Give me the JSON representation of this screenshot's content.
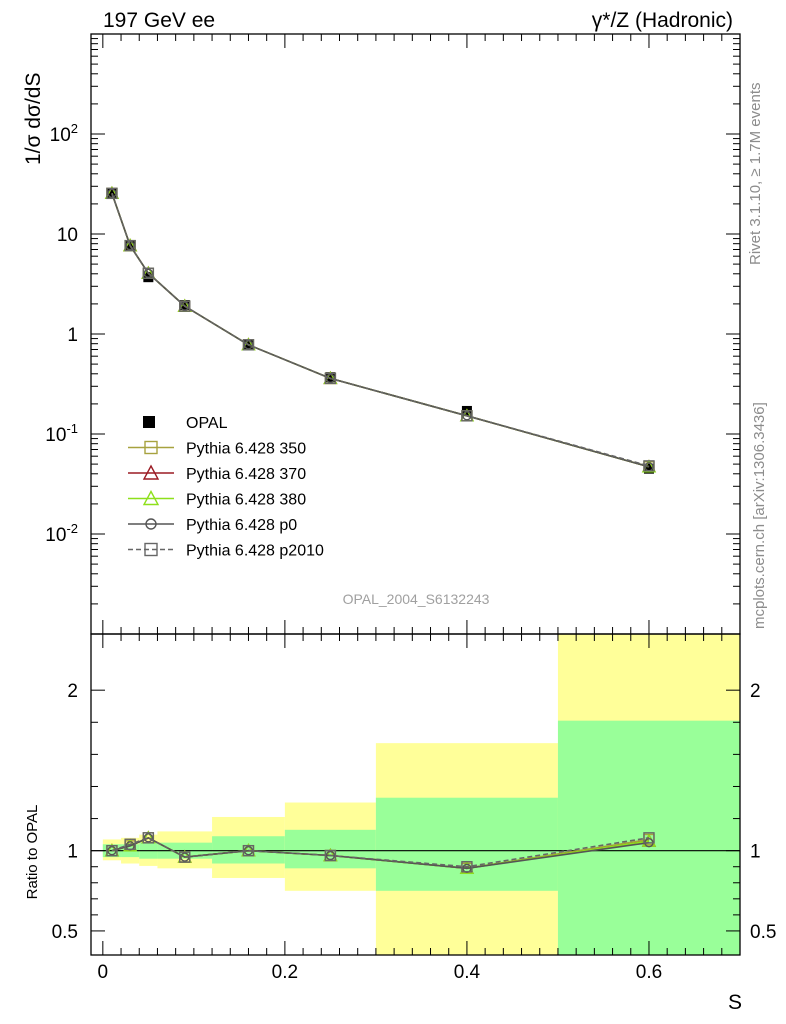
{
  "header": {
    "left": "197 GeV ee",
    "right": "γ*/Z (Hadronic)"
  },
  "side_labels": {
    "rivet": "Rivet 3.1.10, ≥ 1.7M events",
    "mcplots": "mcplots.cern.ch [arXiv:1306.3436]"
  },
  "watermark": "OPAL_2004_S6132243",
  "chart_data": [
    {
      "type": "line",
      "ylabel": "1/σ dσ/dS",
      "yscale": "log",
      "ylim": [
        0.001,
        1000
      ],
      "xlim": [
        -0.013,
        0.7
      ],
      "ytick_labels": [
        "10^-2",
        "10^-1",
        "1",
        "10",
        "10^2"
      ],
      "x": [
        0.01,
        0.03,
        0.05,
        0.09,
        0.16,
        0.25,
        0.4,
        0.6
      ],
      "data": {
        "name": "OPAL",
        "values": [
          25.5,
          7.6,
          3.7,
          1.95,
          0.78,
          0.37,
          0.17,
          0.045
        ]
      },
      "series": [
        {
          "name": "Pythia 6.428 350",
          "color": "#a7a23f",
          "marker": "open-square",
          "style": "solid",
          "values": [
            25.5,
            7.65,
            4.05,
            1.9,
            0.78,
            0.36,
            0.152,
            0.047
          ]
        },
        {
          "name": "Pythia 6.428 370",
          "color": "#9b1b24",
          "marker": "open-triangle",
          "style": "solid",
          "values": [
            25.5,
            7.65,
            4.05,
            1.9,
            0.78,
            0.36,
            0.152,
            0.047
          ]
        },
        {
          "name": "Pythia 6.428 380",
          "color": "#8ee01b",
          "marker": "open-triangle",
          "style": "solid",
          "values": [
            25.5,
            7.65,
            4.05,
            1.9,
            0.78,
            0.36,
            0.152,
            0.047
          ]
        },
        {
          "name": "Pythia 6.428 p0",
          "color": "#555555",
          "marker": "open-circle",
          "style": "solid",
          "values": [
            25.5,
            7.65,
            4.05,
            1.9,
            0.78,
            0.36,
            0.152,
            0.047
          ]
        },
        {
          "name": "Pythia 6.428 p2010",
          "color": "#666666",
          "marker": "open-square",
          "style": "dashed",
          "values": [
            25.5,
            7.65,
            4.05,
            1.9,
            0.78,
            0.36,
            0.152,
            0.048
          ]
        }
      ],
      "legend_position": "lower-left"
    },
    {
      "type": "line",
      "ylabel": "Ratio to OPAL",
      "xlabel": "S",
      "ylim": [
        0.35,
        2.35
      ],
      "xlim": [
        -0.013,
        0.7
      ],
      "xtick_labels": [
        "0",
        "0.2",
        "0.4",
        "0.6"
      ],
      "ytick_labels": [
        "0.5",
        "1",
        "2"
      ],
      "x": [
        0.01,
        0.03,
        0.05,
        0.09,
        0.16,
        0.25,
        0.4,
        0.6
      ],
      "bins": [
        {
          "lo": 0.0,
          "hi": 0.02,
          "stat": [
            0.96,
            1.04
          ],
          "total": [
            0.94,
            1.07
          ]
        },
        {
          "lo": 0.02,
          "hi": 0.04,
          "stat": [
            0.96,
            1.04
          ],
          "total": [
            0.92,
            1.08
          ]
        },
        {
          "lo": 0.04,
          "hi": 0.06,
          "stat": [
            0.95,
            1.05
          ],
          "total": [
            0.905,
            1.1
          ]
        },
        {
          "lo": 0.06,
          "hi": 0.12,
          "stat": [
            0.95,
            1.05
          ],
          "total": [
            0.89,
            1.12
          ]
        },
        {
          "lo": 0.12,
          "hi": 0.2,
          "stat": [
            0.92,
            1.09
          ],
          "total": [
            0.83,
            1.21
          ]
        },
        {
          "lo": 0.2,
          "hi": 0.3,
          "stat": [
            0.89,
            1.13
          ],
          "total": [
            0.75,
            1.3
          ]
        },
        {
          "lo": 0.3,
          "hi": 0.5,
          "stat": [
            0.75,
            1.33
          ],
          "total": [
            0.35,
            1.67
          ]
        },
        {
          "lo": 0.5,
          "hi": 0.7,
          "stat": [
            0.35,
            1.81
          ],
          "total": [
            0.35,
            2.35
          ]
        }
      ],
      "series": [
        {
          "name": "Pythia 6.428 350",
          "values": [
            1.0,
            1.03,
            1.08,
            0.96,
            1.0,
            0.97,
            0.89,
            1.07
          ]
        },
        {
          "name": "Pythia 6.428 370",
          "values": [
            1.0,
            1.03,
            1.08,
            0.96,
            1.0,
            0.97,
            0.89,
            1.06
          ]
        },
        {
          "name": "Pythia 6.428 380",
          "values": [
            1.0,
            1.03,
            1.08,
            0.96,
            1.0,
            0.97,
            0.89,
            1.06
          ]
        },
        {
          "name": "Pythia 6.428 p0",
          "values": [
            1.0,
            1.03,
            1.08,
            0.96,
            1.0,
            0.97,
            0.89,
            1.05
          ]
        },
        {
          "name": "Pythia 6.428 p2010",
          "values": [
            1.0,
            1.04,
            1.08,
            0.96,
            1.0,
            0.97,
            0.9,
            1.08
          ]
        }
      ],
      "colors": {
        "stat_band": "#99ff99",
        "total_band": "#ffff99"
      }
    }
  ]
}
